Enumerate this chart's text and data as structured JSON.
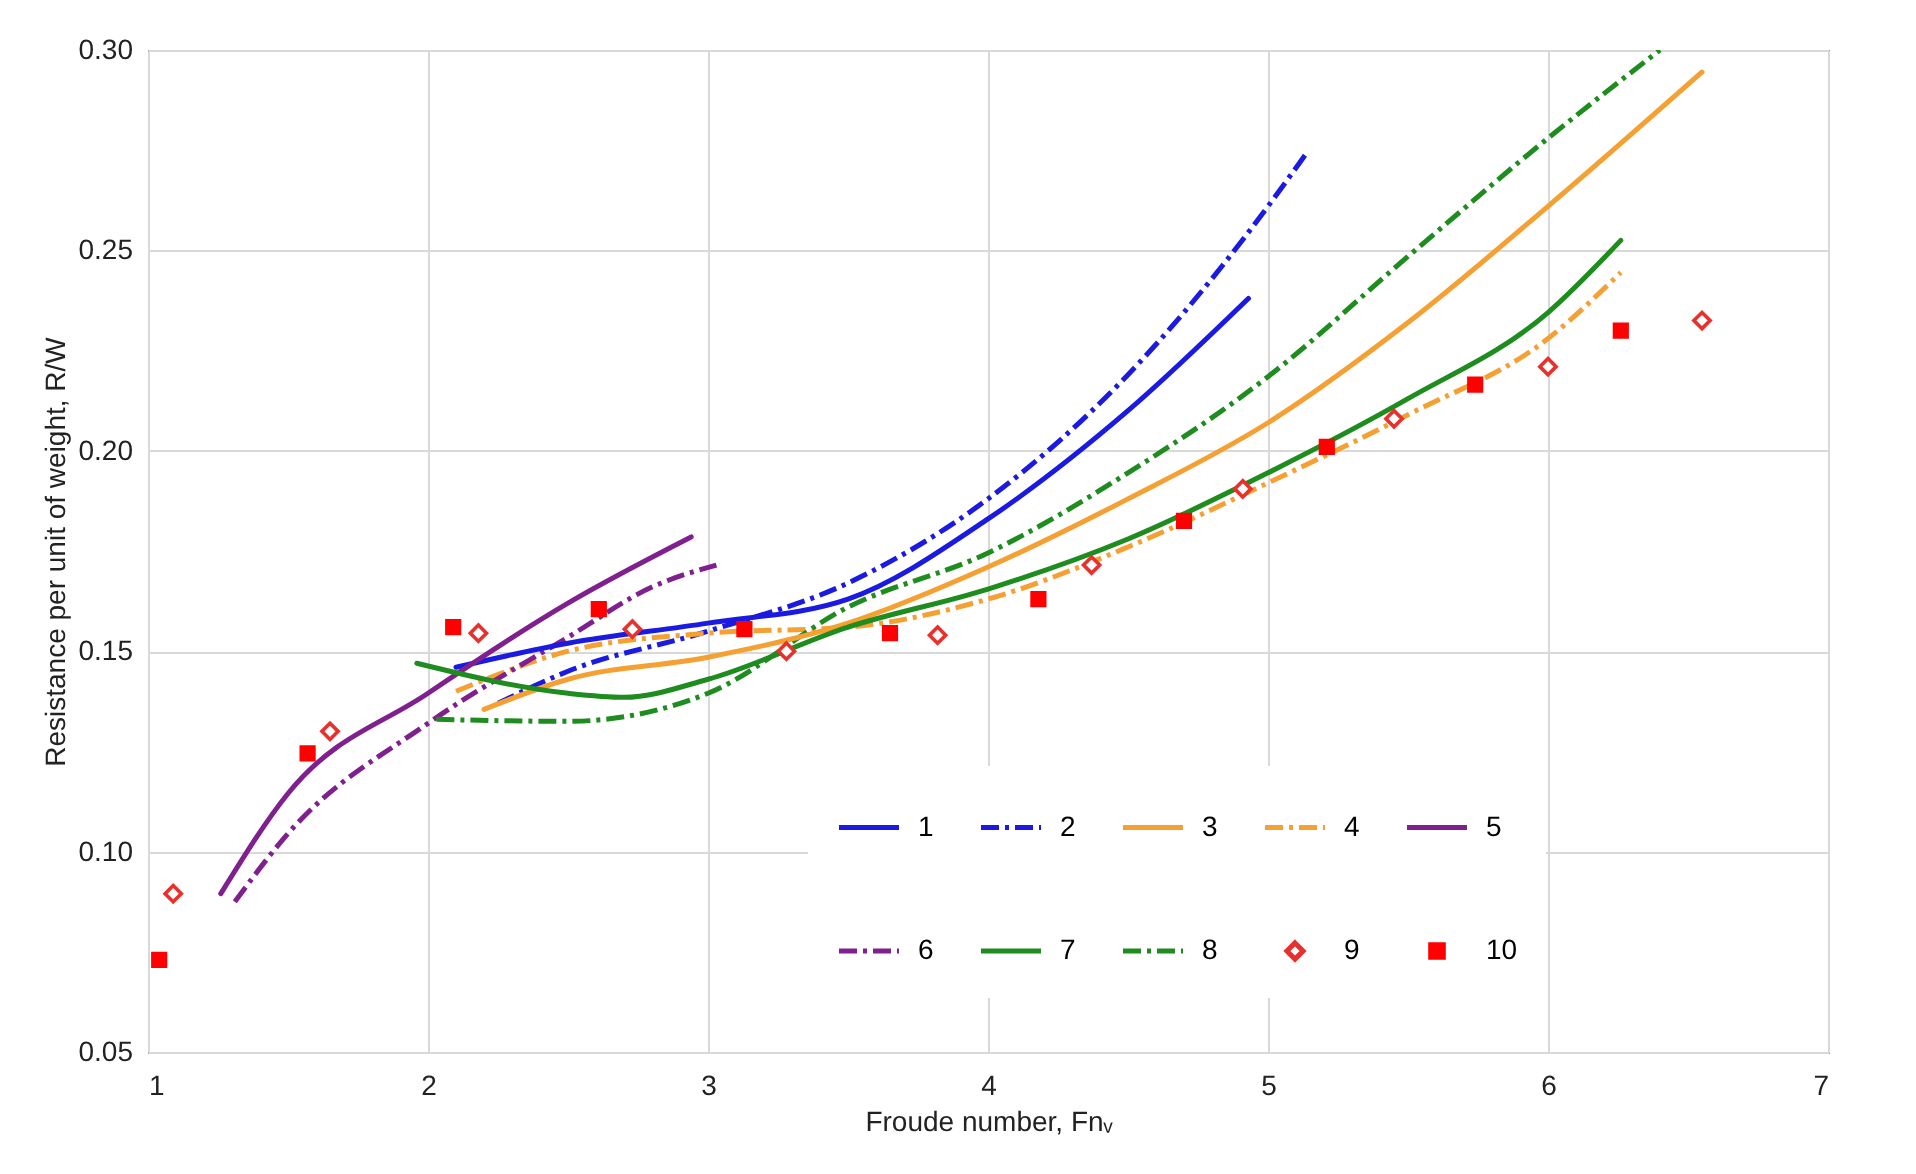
{
  "chart_data": {
    "type": "line",
    "xlabel": "Froude number, Fnᵥ",
    "ylabel": "Resistance per unit of weight, R/W",
    "xlim": [
      1,
      7
    ],
    "xticks": [
      1,
      2,
      3,
      4,
      5,
      6,
      7
    ],
    "ylim": [
      0.05,
      0.3
    ],
    "yticks": [
      0.05,
      {
        "value": 0.1,
        "label": "0.10"
      },
      0.15,
      {
        "value": 0.2,
        "label": "0.20"
      },
      0.25,
      {
        "value": 0.3,
        "label": "0.30"
      }
    ],
    "grid": true,
    "legend": "bottom right",
    "series": [
      {
        "name": "1",
        "color": "#1a1ae0",
        "line_style": "solid",
        "x": [
          2.1,
          2.5,
          3,
          3.5,
          4,
          4.5,
          4.93
        ],
        "values": [
          0.146,
          0.152,
          0.157,
          0.163,
          0.183,
          0.21,
          0.238
        ]
      },
      {
        "name": "2",
        "color": "#1a1ae0",
        "line_style": "dashed",
        "x": [
          2.25,
          2.5,
          3,
          3.5,
          4,
          4.5,
          4.93,
          5.14
        ],
        "values": [
          0.137,
          0.145,
          0.155,
          0.167,
          0.188,
          0.219,
          0.2545,
          0.2745
        ]
      },
      {
        "name": "3",
        "color": "#f5a033",
        "line_style": "solid",
        "x": [
          2.2,
          2.5,
          3,
          3.5,
          4,
          4.5,
          5,
          5.5,
          6,
          6.55
        ],
        "values": [
          0.1355,
          0.143,
          0.1485,
          0.157,
          0.171,
          0.188,
          0.207,
          0.232,
          0.261,
          0.2945
        ]
      },
      {
        "name": "4",
        "color": "#f5a033",
        "line_style": "dashed",
        "x": [
          2.1,
          2.5,
          3,
          3.5,
          4,
          4.5,
          5,
          5.5,
          6,
          6.26
        ],
        "values": [
          0.14,
          0.15,
          0.1545,
          0.156,
          0.163,
          0.176,
          0.192,
          0.209,
          0.228,
          0.2445
        ]
      },
      {
        "name": "5",
        "color": "#80208f",
        "line_style": "solid",
        "x": [
          1.26,
          1.5,
          2,
          2.5,
          2.94
        ],
        "values": [
          0.0895,
          0.1145,
          0.1395,
          0.162,
          0.1785
        ]
      },
      {
        "name": "6",
        "color": "#80208f",
        "line_style": "dashed",
        "x": [
          1.31,
          1.5,
          2,
          2.5,
          2.8,
          3.03
        ],
        "values": [
          0.0875,
          0.1045,
          0.132,
          0.1535,
          0.166,
          0.1715
        ]
      },
      {
        "name": "7",
        "color": "#1e8c1e",
        "line_style": "solid",
        "x": [
          1.96,
          2.5,
          2.7,
          3,
          3.5,
          4,
          4.5,
          5,
          5.5,
          6,
          6.26
        ],
        "values": [
          0.147,
          0.1395,
          0.1385,
          0.143,
          0.156,
          0.1655,
          0.178,
          0.1945,
          0.213,
          0.2345,
          0.2525
        ]
      },
      {
        "name": "8",
        "color": "#1e8c1e",
        "line_style": "dashed",
        "x": [
          2.03,
          2.5,
          3,
          3.5,
          4,
          4.5,
          5,
          5.5,
          6,
          6.4
        ],
        "values": [
          0.133,
          0.1325,
          0.1395,
          0.161,
          0.1745,
          0.1945,
          0.2185,
          0.2485,
          0.278,
          0.3
        ]
      },
      {
        "name": "9",
        "type": "scatter",
        "color": "#e8312c",
        "marker": "diamond",
        "x": [
          1.09,
          1.65,
          2.18,
          2.73,
          3.28,
          3.82,
          4.37,
          4.91,
          5.45,
          6.0,
          6.55
        ],
        "values": [
          0.0895,
          0.13,
          0.1545,
          0.1555,
          0.15,
          0.154,
          0.1715,
          0.1905,
          0.208,
          0.221,
          0.2325
        ]
      },
      {
        "name": "10",
        "type": "scatter",
        "color": "#ff0000",
        "marker": "square",
        "x": [
          1.04,
          1.57,
          2.09,
          2.61,
          3.13,
          3.65,
          4.18,
          4.7,
          5.21,
          5.74,
          6.26
        ],
        "values": [
          0.073,
          0.1245,
          0.156,
          0.1605,
          0.1555,
          0.1545,
          0.163,
          0.1825,
          0.201,
          0.2165,
          0.23
        ]
      }
    ]
  }
}
